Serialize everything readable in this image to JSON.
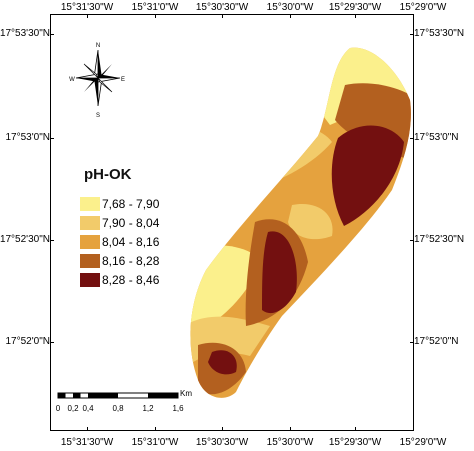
{
  "coordinates": {
    "top": [
      "15°31'30\"W",
      "15°31'0\"W",
      "15°30'30\"W",
      "15°30'0\"W",
      "15°29'30\"W",
      "15°29'0\"W"
    ],
    "bottom": [
      "15°31'30\"W",
      "15°31'0\"W",
      "15°30'30\"W",
      "15°30'0\"W",
      "15°29'30\"W",
      "15°29'0\"W"
    ],
    "left": [
      "17°53'30\"N",
      "17°53'0\"N",
      "17°52'30\"N",
      "17°52'0\"N"
    ],
    "right": [
      "17°53'30\"N",
      "17°53'0\"N",
      "17°52'30\"N",
      "17°52'0\"N"
    ]
  },
  "north_arrow": {
    "n": "N",
    "s": "S",
    "e": "E",
    "w": "W"
  },
  "legend": {
    "title": "pH-OK",
    "classes": [
      {
        "label": "7,68 - 7,90",
        "color": "#fbf08c"
      },
      {
        "label": "7,90 - 8,04",
        "color": "#f2cb6a"
      },
      {
        "label": "8,04 - 8,16",
        "color": "#e5a23e"
      },
      {
        "label": "8,16 - 8,28",
        "color": "#b3601f"
      },
      {
        "label": "8,28 - 8,46",
        "color": "#731010"
      }
    ]
  },
  "scale_bar": {
    "unit": "Km",
    "labels": [
      "0",
      "0,2",
      "0,4",
      "0,8",
      "1,2",
      "1,6"
    ]
  }
}
